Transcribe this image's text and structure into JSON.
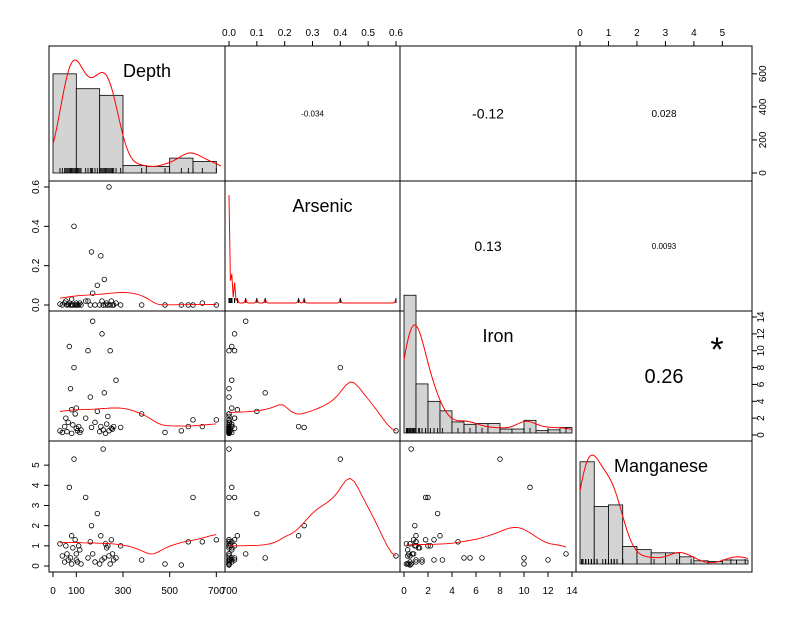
{
  "chart_data": {
    "type": "scatter-matrix",
    "variables": [
      "Depth",
      "Arsenic",
      "Iron",
      "Manganese"
    ],
    "axes": {
      "Depth": {
        "range": [
          0,
          720
        ],
        "ticks": [
          0,
          100,
          300,
          500,
          700
        ],
        "extra_tick_labels": [
          {
            "value": 700,
            "label": "700"
          }
        ]
      },
      "Arsenic": {
        "range": [
          0,
          0.6
        ],
        "ticks": [
          0.0,
          0.1,
          0.2,
          0.3,
          0.4,
          0.5,
          0.6
        ],
        "tick_labels": [
          "0.0",
          "0.1",
          "0.2",
          "0.3",
          "0.4",
          "0.5",
          "0.6"
        ],
        "left_ticks": [
          0.0,
          0.2,
          0.4,
          0.6
        ],
        "left_tick_labels": [
          "0.0",
          "0.2",
          "0.4",
          "0.6"
        ]
      },
      "Iron": {
        "range": [
          0,
          14
        ],
        "ticks": [
          0,
          2,
          4,
          6,
          8,
          10,
          12,
          14
        ]
      },
      "Manganese": {
        "range": [
          0,
          5.9
        ],
        "ticks": [
          0,
          1,
          2,
          3,
          4,
          5
        ]
      },
      "Count": {
        "ticks": [
          0,
          200,
          400,
          600
        ]
      }
    },
    "correlations": [
      {
        "pair": [
          "Depth",
          "Arsenic"
        ],
        "label": "-0.034",
        "size": "tiny"
      },
      {
        "pair": [
          "Depth",
          "Iron"
        ],
        "label": "-0.12",
        "size": "medium"
      },
      {
        "pair": [
          "Depth",
          "Manganese"
        ],
        "label": "0.028",
        "size": "small"
      },
      {
        "pair": [
          "Arsenic",
          "Iron"
        ],
        "label": "0.13",
        "size": "medium"
      },
      {
        "pair": [
          "Arsenic",
          "Manganese"
        ],
        "label": "0.0093",
        "size": "tiny"
      },
      {
        "pair": [
          "Iron",
          "Manganese"
        ],
        "label": "0.26",
        "size": "large",
        "significance": "*"
      }
    ],
    "histograms": {
      "Depth": {
        "bin_edges": [
          0,
          100,
          200,
          300,
          400,
          500,
          600,
          700
        ],
        "counts": [
          600,
          510,
          470,
          45,
          40,
          90,
          70
        ]
      },
      "Arsenic": {
        "bin_edges": [
          0,
          0.02,
          0.6
        ],
        "counts": [
          0,
          0
        ]
      },
      "Iron": {
        "bin_edges": [
          0,
          1,
          2,
          3,
          4,
          5,
          6,
          7,
          8,
          9,
          10,
          11,
          12,
          13,
          14
        ],
        "counts": [
          870,
          310,
          200,
          140,
          70,
          55,
          60,
          60,
          25,
          25,
          80,
          15,
          20,
          35
        ]
      },
      "Manganese": {
        "bin_edges": [
          0,
          0.5,
          1,
          1.5,
          2,
          2.5,
          3,
          3.5,
          4,
          4.5,
          5,
          5.5,
          5.9
        ],
        "counts": [
          640,
          360,
          370,
          110,
          90,
          70,
          70,
          45,
          20,
          15,
          25,
          25
        ]
      }
    },
    "data": {
      "Depth": [
        30,
        40,
        50,
        55,
        60,
        65,
        70,
        75,
        80,
        80,
        85,
        90,
        95,
        100,
        100,
        105,
        110,
        115,
        120,
        140,
        150,
        160,
        165,
        170,
        180,
        190,
        200,
        205,
        210,
        215,
        220,
        225,
        230,
        235,
        240,
        245,
        250,
        255,
        260,
        270,
        290,
        380,
        480,
        550,
        580,
        600,
        640,
        700
      ],
      "Arsenic": [
        0.005,
        0.0,
        0.01,
        0.02,
        0.0,
        0.003,
        0.01,
        0.0,
        0.03,
        0.0,
        0.0,
        0.4,
        0.0,
        0.0,
        0.01,
        0.0,
        0.0,
        0.01,
        0.0,
        0.02,
        0.02,
        0.0,
        0.27,
        0.06,
        0.0,
        0.1,
        0.0,
        0.25,
        0.02,
        0.0,
        0.13,
        0.0,
        0.01,
        0.0,
        0.6,
        0.0,
        0.02,
        0.0,
        0.0,
        0.01,
        0.0,
        0.0,
        0.0,
        0.0,
        0.0,
        0.0,
        0.01,
        0.0
      ],
      "Iron": [
        0.5,
        0.3,
        1.0,
        2.0,
        0.4,
        1.5,
        10.5,
        5.5,
        3.0,
        0.2,
        1.2,
        8.0,
        2.5,
        0.8,
        3.2,
        0.5,
        1.0,
        0.3,
        0.6,
        2.0,
        10.0,
        4.5,
        0.9,
        13.5,
        1.5,
        2.8,
        0.4,
        1.0,
        12.0,
        0.6,
        5.0,
        0.2,
        1.3,
        2.2,
        0.5,
        10.0,
        0.8,
        0.7,
        1.0,
        6.5,
        0.9,
        2.5,
        0.3,
        0.5,
        1.0,
        1.8,
        1.0,
        1.8
      ],
      "Manganese": [
        1.1,
        0.5,
        0.2,
        1.0,
        0.6,
        0.3,
        3.9,
        0.4,
        1.5,
        0.1,
        0.9,
        5.3,
        1.3,
        0.6,
        0.3,
        0.2,
        1.0,
        0.8,
        0.1,
        3.4,
        0.4,
        1.2,
        2.0,
        0.6,
        0.2,
        2.6,
        0.1,
        1.5,
        0.3,
        5.8,
        0.4,
        1.1,
        0.9,
        1.0,
        0.5,
        0.1,
        1.3,
        0.6,
        0.3,
        0.4,
        1.0,
        0.3,
        0.1,
        0.05,
        1.2,
        3.4,
        1.2,
        1.3
      ]
    },
    "smoother_color": "#ff0000",
    "bar_fill": "#d3d3d3",
    "star_color": "#df536b",
    "grid": false,
    "legend": "none"
  }
}
